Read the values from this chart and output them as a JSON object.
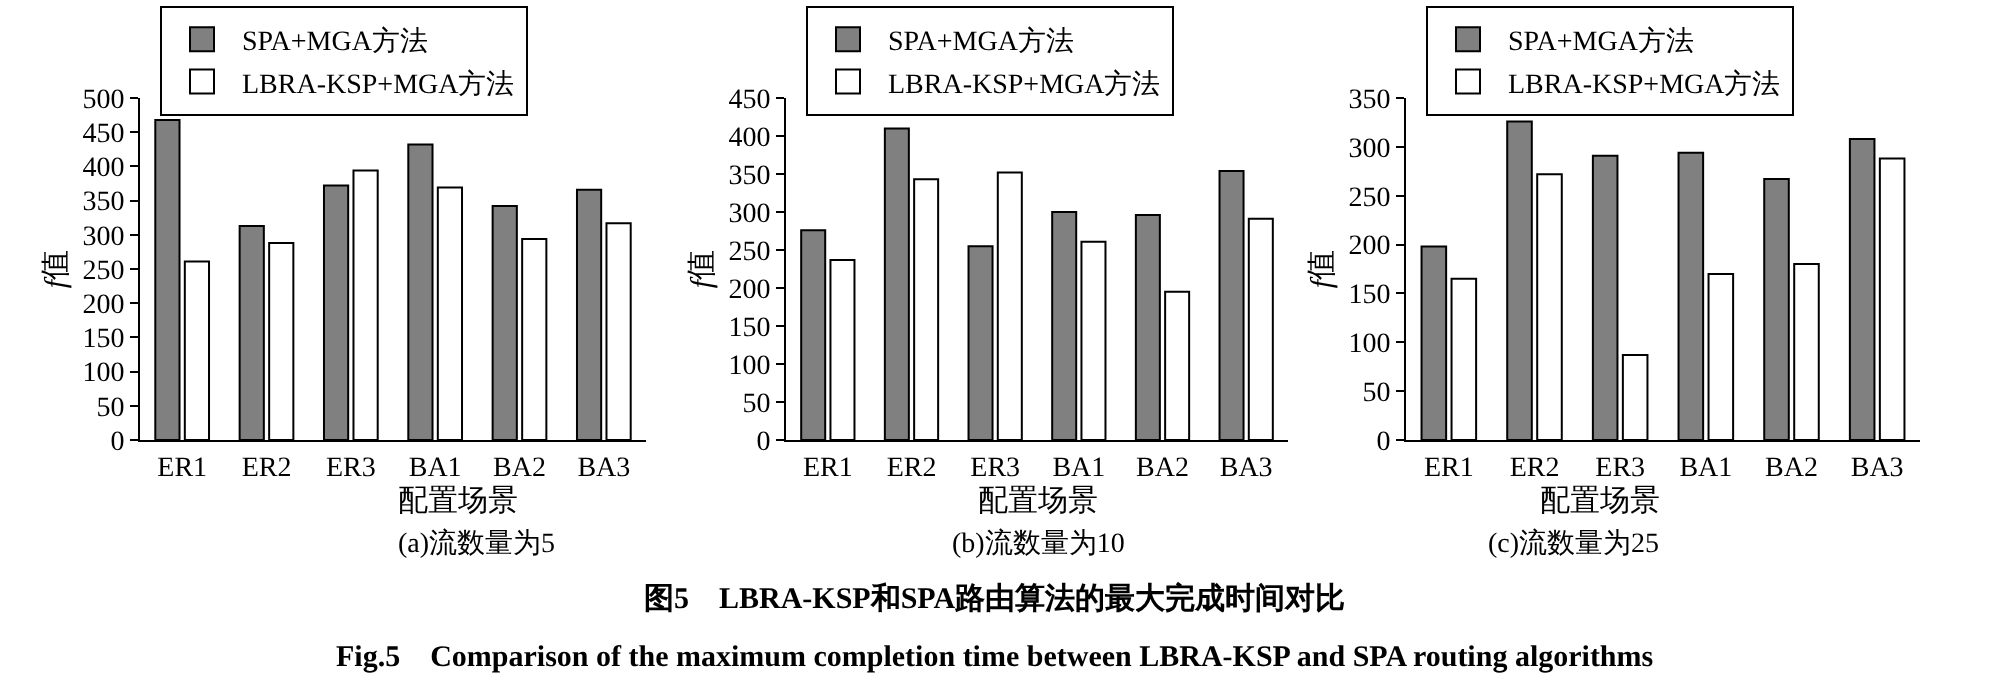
{
  "chart_data": [
    {
      "type": "bar",
      "title": "(a)流数量为5",
      "xlabel": "配置场景",
      "ylabel": "f值",
      "categories": [
        "ER1",
        "ER2",
        "ER3",
        "BA1",
        "BA2",
        "BA3"
      ],
      "series": [
        {
          "name": "SPA+MGA方法",
          "color": "#808080",
          "values": [
            468,
            313,
            372,
            432,
            342,
            366
          ]
        },
        {
          "name": "LBRA-KSP+MGA方法",
          "color": "#ffffff",
          "values": [
            261,
            288,
            394,
            369,
            294,
            317
          ]
        }
      ],
      "ylim": [
        0,
        500
      ],
      "yticks": [
        0,
        50,
        100,
        150,
        200,
        250,
        300,
        350,
        400,
        450,
        500
      ],
      "legend": "top",
      "annotations": [
        "图5　LBRA-KSP和SPA路由算法的最大完成时间对比",
        "Fig.5　Comparison of the maximum completion time between LBRA-KSP and SPA routing algorithms"
      ]
    },
    {
      "type": "bar",
      "title": "(b)流数量为10",
      "xlabel": "配置场景",
      "ylabel": "f值",
      "categories": [
        "ER1",
        "ER2",
        "ER3",
        "BA1",
        "BA2",
        "BA3"
      ],
      "series": [
        {
          "name": "SPA+MGA方法",
          "color": "#808080",
          "values": [
            276,
            410,
            255,
            300,
            296,
            354
          ]
        },
        {
          "name": "LBRA-KSP+MGA方法",
          "color": "#ffffff",
          "values": [
            237,
            343,
            352,
            261,
            195,
            291
          ]
        }
      ],
      "ylim": [
        0,
        450
      ],
      "yticks": [
        0,
        50,
        100,
        150,
        200,
        250,
        300,
        350,
        400,
        450
      ],
      "legend": "top"
    },
    {
      "type": "bar",
      "title": "(c)流数量为25",
      "xlabel": "配置场景",
      "ylabel": "f值",
      "categories": [
        "ER1",
        "ER2",
        "ER3",
        "BA1",
        "BA2",
        "BA3"
      ],
      "series": [
        {
          "name": "SPA+MGA方法",
          "color": "#808080",
          "values": [
            198,
            326,
            291,
            294,
            267,
            308
          ]
        },
        {
          "name": "LBRA-KSP+MGA方法",
          "color": "#ffffff",
          "values": [
            165,
            272,
            87,
            170,
            180,
            288
          ]
        }
      ],
      "ylim": [
        0,
        350
      ],
      "yticks": [
        0,
        50,
        100,
        150,
        200,
        250,
        300,
        350
      ],
      "legend": "top"
    }
  ]
}
